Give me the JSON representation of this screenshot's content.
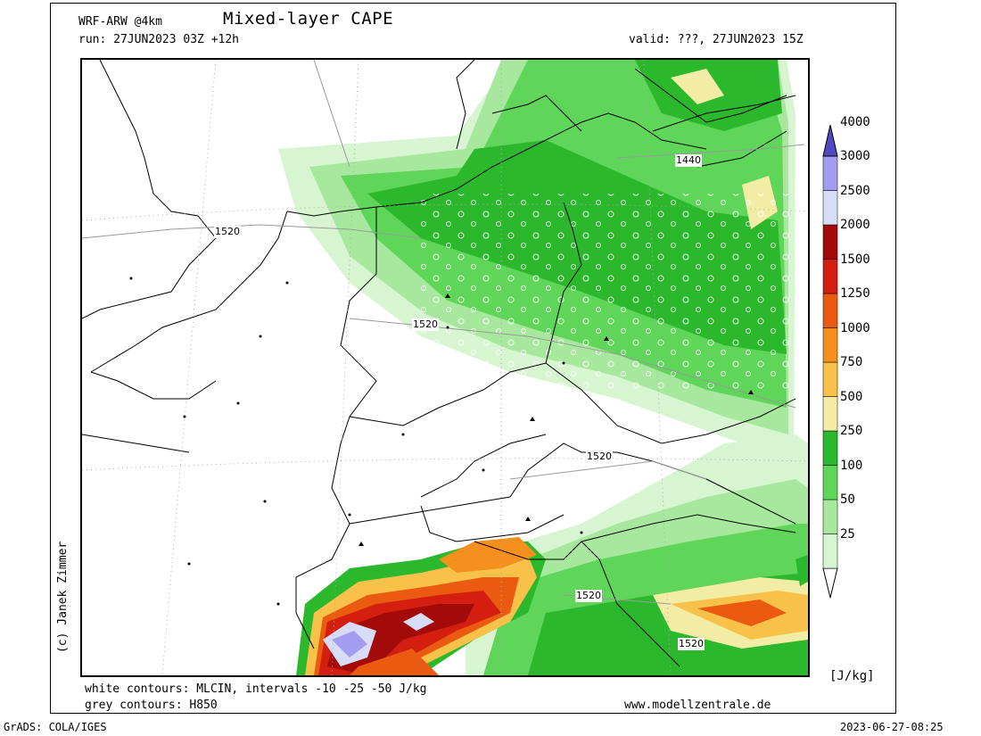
{
  "header": {
    "model": "WRF-ARW @4km",
    "title": "Mixed-layer CAPE",
    "run": "run: 27JUN2023 03Z +12h",
    "valid": "valid: ???, 27JUN2023 15Z"
  },
  "footer": {
    "white_contours": "white contours: MLCIN, intervals -10 -25 -50 J/kg",
    "grey_contours": "grey contours: H850",
    "website": "www.modellzentrale.de",
    "grads": "GrADS: COLA/IGES",
    "timestamp": "2023-06-27-08:25"
  },
  "credit": "(c) Janek Zimmer",
  "colorbar": {
    "unit": "[J/kg]",
    "levels": [
      "25",
      "50",
      "100",
      "250",
      "500",
      "750",
      "1000",
      "1250",
      "1500",
      "2000",
      "2500",
      "3000",
      "4000"
    ],
    "colors": [
      "#d6f5d0",
      "#a8e89e",
      "#5fd55a",
      "#2cb82c",
      "#f3eca5",
      "#f8c24a",
      "#f5901e",
      "#ea5a10",
      "#d41e10",
      "#a30a0a",
      "#d8dcf6",
      "#a49cf0",
      "#7a6fe0",
      "#5148c4"
    ]
  },
  "map": {
    "h850_labels": [
      "1440",
      "1520",
      "1520",
      "1520",
      "1520",
      "1520"
    ]
  }
}
